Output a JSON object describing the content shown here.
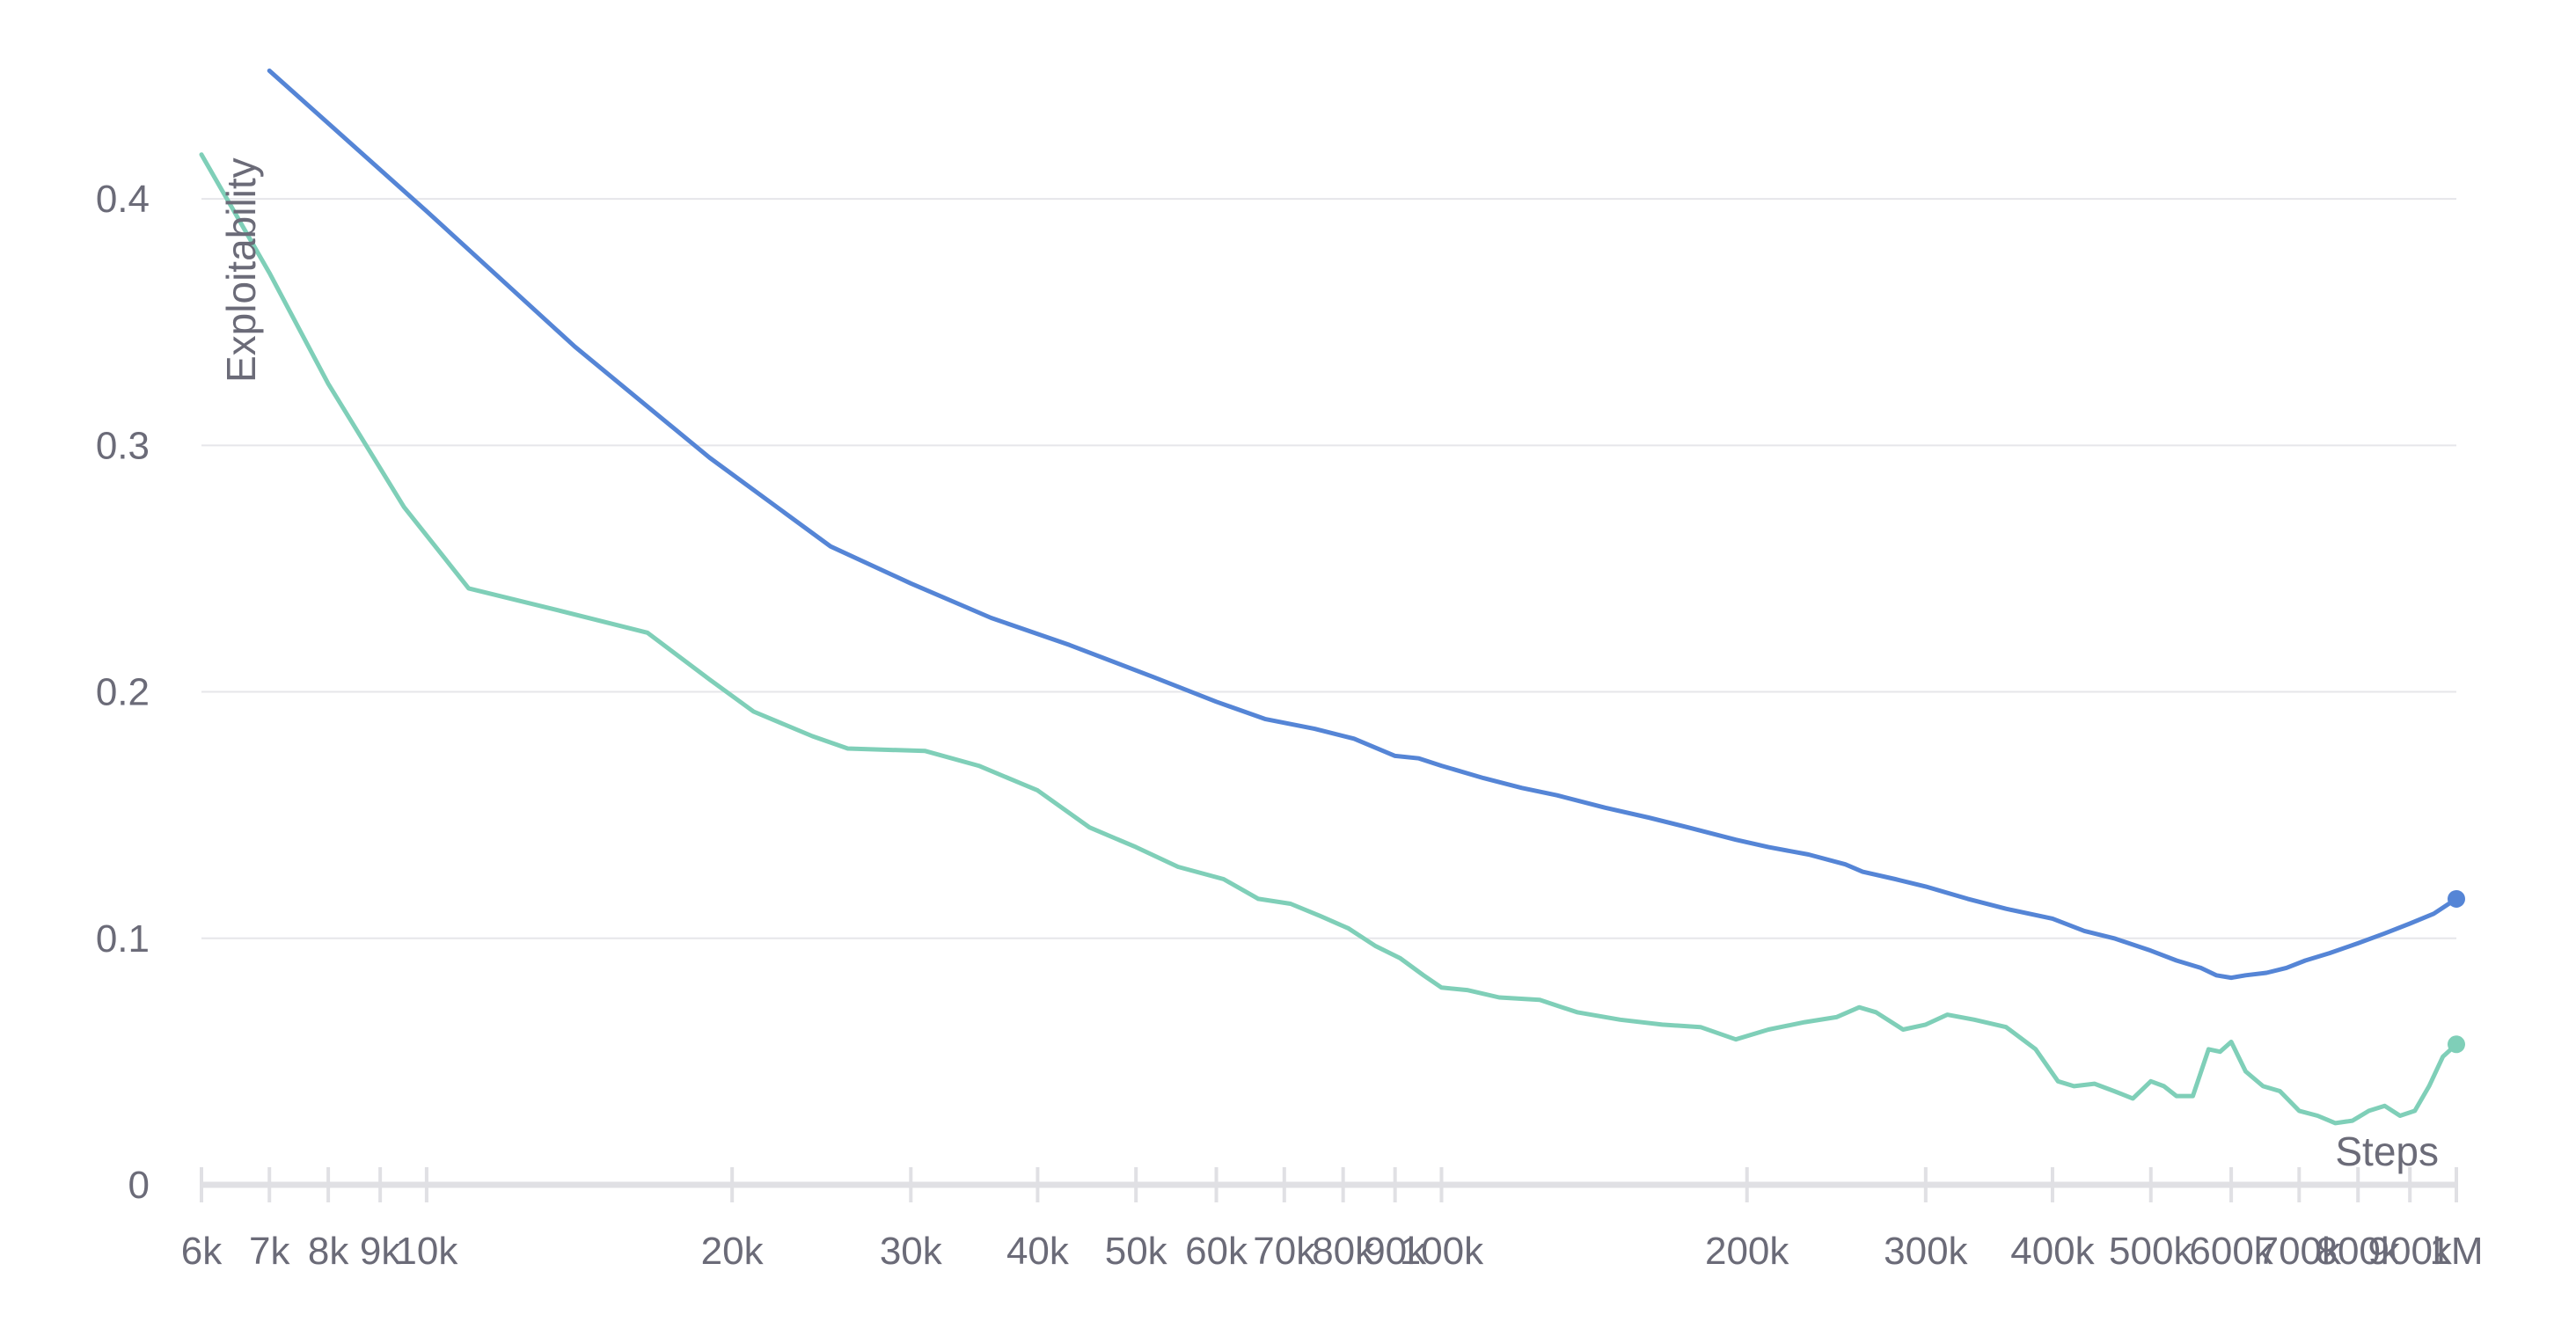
{
  "chart_data": {
    "type": "line",
    "title": "",
    "xlabel": "Steps",
    "ylabel": "Exploitability",
    "x_scale": "log",
    "xlim": [
      6000,
      1000000
    ],
    "ylim": [
      0,
      0.45
    ],
    "grid": "horizontal",
    "legend": "none",
    "y_ticks": [
      {
        "value": 0,
        "label": "0"
      },
      {
        "value": 0.1,
        "label": "0.1"
      },
      {
        "value": 0.2,
        "label": "0.2"
      },
      {
        "value": 0.3,
        "label": "0.3"
      },
      {
        "value": 0.4,
        "label": "0.4"
      }
    ],
    "x_ticks": [
      {
        "value": 6000,
        "label": "6k"
      },
      {
        "value": 7000,
        "label": "7k"
      },
      {
        "value": 8000,
        "label": "8k"
      },
      {
        "value": 9000,
        "label": "9k"
      },
      {
        "value": 10000,
        "label": "10k"
      },
      {
        "value": 20000,
        "label": "20k"
      },
      {
        "value": 30000,
        "label": "30k"
      },
      {
        "value": 40000,
        "label": "40k"
      },
      {
        "value": 50000,
        "label": "50k"
      },
      {
        "value": 60000,
        "label": "60k"
      },
      {
        "value": 70000,
        "label": "70k"
      },
      {
        "value": 80000,
        "label": "80k"
      },
      {
        "value": 90000,
        "label": "90k"
      },
      {
        "value": 100000,
        "label": "100k"
      },
      {
        "value": 200000,
        "label": "200k"
      },
      {
        "value": 300000,
        "label": "300k"
      },
      {
        "value": 400000,
        "label": "400k"
      },
      {
        "value": 500000,
        "label": "500k"
      },
      {
        "value": 600000,
        "label": "600k"
      },
      {
        "value": 700000,
        "label": "700k"
      },
      {
        "value": 800000,
        "label": "800k"
      },
      {
        "value": 900000,
        "label": "900k"
      },
      {
        "value": 1000000,
        "label": "1M"
      }
    ],
    "series": [
      {
        "color": "#5585d6",
        "points": [
          [
            7000,
            0.452
          ],
          [
            10000,
            0.395
          ],
          [
            14000,
            0.34
          ],
          [
            19000,
            0.295
          ],
          [
            25000,
            0.259
          ],
          [
            30000,
            0.244
          ],
          [
            36000,
            0.23
          ],
          [
            43000,
            0.219
          ],
          [
            52000,
            0.206
          ],
          [
            60000,
            0.196
          ],
          [
            67000,
            0.189
          ],
          [
            75000,
            0.185
          ],
          [
            82000,
            0.181
          ],
          [
            90000,
            0.174
          ],
          [
            95000,
            0.173
          ],
          [
            100000,
            0.17
          ],
          [
            110000,
            0.165
          ],
          [
            120000,
            0.161
          ],
          [
            130000,
            0.158
          ],
          [
            145000,
            0.153
          ],
          [
            160000,
            0.149
          ],
          [
            175000,
            0.145
          ],
          [
            195000,
            0.14
          ],
          [
            210000,
            0.137
          ],
          [
            230000,
            0.134
          ],
          [
            250000,
            0.13
          ],
          [
            260000,
            0.127
          ],
          [
            280000,
            0.124
          ],
          [
            300000,
            0.121
          ],
          [
            330000,
            0.116
          ],
          [
            360000,
            0.112
          ],
          [
            400000,
            0.108
          ],
          [
            430000,
            0.103
          ],
          [
            460000,
            0.1
          ],
          [
            500000,
            0.095
          ],
          [
            530000,
            0.091
          ],
          [
            560000,
            0.088
          ],
          [
            580000,
            0.085
          ],
          [
            600000,
            0.084
          ],
          [
            620000,
            0.085
          ],
          [
            650000,
            0.086
          ],
          [
            680000,
            0.088
          ],
          [
            710000,
            0.091
          ],
          [
            750000,
            0.094
          ],
          [
            800000,
            0.098
          ],
          [
            850000,
            0.102
          ],
          [
            900000,
            0.106
          ],
          [
            950000,
            0.11
          ],
          [
            1000000,
            0.116
          ]
        ]
      },
      {
        "color": "#7fcfb8",
        "points": [
          [
            6000,
            0.418
          ],
          [
            7000,
            0.37
          ],
          [
            8000,
            0.325
          ],
          [
            9500,
            0.275
          ],
          [
            11000,
            0.242
          ],
          [
            13500,
            0.233
          ],
          [
            16500,
            0.224
          ],
          [
            19000,
            0.205
          ],
          [
            21000,
            0.192
          ],
          [
            24000,
            0.182
          ],
          [
            26000,
            0.177
          ],
          [
            31000,
            0.176
          ],
          [
            35000,
            0.17
          ],
          [
            40000,
            0.16
          ],
          [
            45000,
            0.145
          ],
          [
            50000,
            0.137
          ],
          [
            55000,
            0.129
          ],
          [
            61000,
            0.124
          ],
          [
            66000,
            0.116
          ],
          [
            71000,
            0.114
          ],
          [
            76000,
            0.109
          ],
          [
            81000,
            0.104
          ],
          [
            86000,
            0.097
          ],
          [
            91000,
            0.092
          ],
          [
            96000,
            0.085
          ],
          [
            100000,
            0.08
          ],
          [
            106000,
            0.079
          ],
          [
            114000,
            0.076
          ],
          [
            125000,
            0.075
          ],
          [
            136000,
            0.07
          ],
          [
            150000,
            0.067
          ],
          [
            165000,
            0.065
          ],
          [
            180000,
            0.064
          ],
          [
            195000,
            0.059
          ],
          [
            210000,
            0.063
          ],
          [
            228000,
            0.066
          ],
          [
            245000,
            0.068
          ],
          [
            258000,
            0.072
          ],
          [
            268000,
            0.07
          ],
          [
            285000,
            0.063
          ],
          [
            300000,
            0.065
          ],
          [
            315000,
            0.069
          ],
          [
            335000,
            0.067
          ],
          [
            360000,
            0.064
          ],
          [
            385000,
            0.055
          ],
          [
            405000,
            0.042
          ],
          [
            420000,
            0.04
          ],
          [
            440000,
            0.041
          ],
          [
            460000,
            0.038
          ],
          [
            480000,
            0.035
          ],
          [
            500000,
            0.042
          ],
          [
            515000,
            0.04
          ],
          [
            530000,
            0.036
          ],
          [
            550000,
            0.036
          ],
          [
            570000,
            0.055
          ],
          [
            585000,
            0.054
          ],
          [
            600000,
            0.058
          ],
          [
            620000,
            0.046
          ],
          [
            645000,
            0.04
          ],
          [
            670000,
            0.038
          ],
          [
            700000,
            0.03
          ],
          [
            730000,
            0.028
          ],
          [
            760000,
            0.025
          ],
          [
            790000,
            0.026
          ],
          [
            820000,
            0.03
          ],
          [
            850000,
            0.032
          ],
          [
            880000,
            0.028
          ],
          [
            910000,
            0.03
          ],
          [
            940000,
            0.04
          ],
          [
            970000,
            0.052
          ],
          [
            1000000,
            0.057
          ]
        ]
      }
    ]
  }
}
